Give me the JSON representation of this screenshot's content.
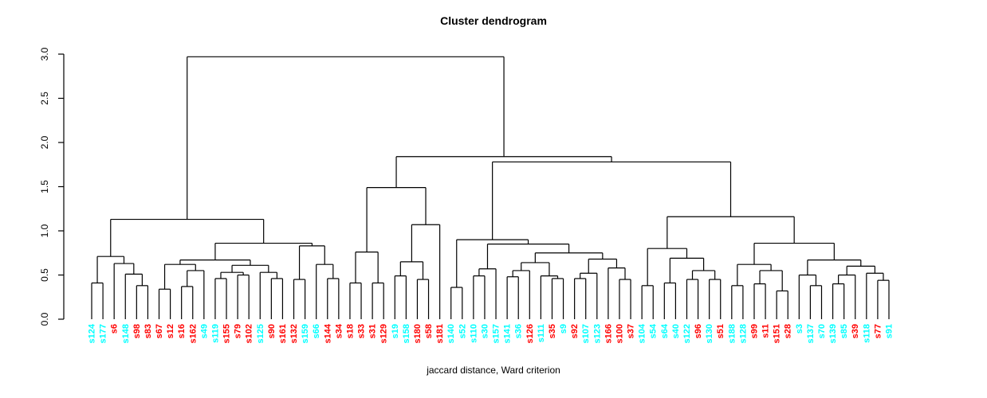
{
  "chart_data": {
    "type": "dendrogram",
    "title": "Cluster dendrogram",
    "xlabel": "jaccard distance, Ward criterion",
    "ylabel": "",
    "ylim": [
      0.0,
      3.0
    ],
    "yticks": [
      "0.0",
      "0.5",
      "1.0",
      "1.5",
      "2.0",
      "2.5",
      "3.0"
    ],
    "grid": false,
    "line_color": "#000000",
    "label_colors": {
      "red": "#ff0000",
      "cyan": "#00ffff"
    },
    "leaf_order": [
      {
        "label": "s124",
        "color": "cyan"
      },
      {
        "label": "s177",
        "color": "cyan"
      },
      {
        "label": "s6",
        "color": "red"
      },
      {
        "label": "s148",
        "color": "cyan"
      },
      {
        "label": "s98",
        "color": "red"
      },
      {
        "label": "s83",
        "color": "red"
      },
      {
        "label": "s67",
        "color": "red"
      },
      {
        "label": "s12",
        "color": "red"
      },
      {
        "label": "s16",
        "color": "red"
      },
      {
        "label": "s162",
        "color": "red"
      },
      {
        "label": "s49",
        "color": "cyan"
      },
      {
        "label": "s119",
        "color": "cyan"
      },
      {
        "label": "s155",
        "color": "red"
      },
      {
        "label": "s79",
        "color": "red"
      },
      {
        "label": "s102",
        "color": "red"
      },
      {
        "label": "s125",
        "color": "cyan"
      },
      {
        "label": "s90",
        "color": "red"
      },
      {
        "label": "s161",
        "color": "red"
      },
      {
        "label": "s132",
        "color": "red"
      },
      {
        "label": "s159",
        "color": "cyan"
      },
      {
        "label": "s66",
        "color": "cyan"
      },
      {
        "label": "s144",
        "color": "red"
      },
      {
        "label": "s34",
        "color": "red"
      },
      {
        "label": "s18",
        "color": "red"
      },
      {
        "label": "s33",
        "color": "red"
      },
      {
        "label": "s31",
        "color": "red"
      },
      {
        "label": "s129",
        "color": "red"
      },
      {
        "label": "s19",
        "color": "cyan"
      },
      {
        "label": "s158",
        "color": "cyan"
      },
      {
        "label": "s180",
        "color": "red"
      },
      {
        "label": "s58",
        "color": "red"
      },
      {
        "label": "s181",
        "color": "red"
      },
      {
        "label": "s140",
        "color": "cyan"
      },
      {
        "label": "s52",
        "color": "cyan"
      },
      {
        "label": "s110",
        "color": "cyan"
      },
      {
        "label": "s30",
        "color": "cyan"
      },
      {
        "label": "s157",
        "color": "cyan"
      },
      {
        "label": "s141",
        "color": "cyan"
      },
      {
        "label": "s36",
        "color": "cyan"
      },
      {
        "label": "s126",
        "color": "red"
      },
      {
        "label": "s111",
        "color": "cyan"
      },
      {
        "label": "s35",
        "color": "red"
      },
      {
        "label": "s9",
        "color": "cyan"
      },
      {
        "label": "s92",
        "color": "red"
      },
      {
        "label": "s107",
        "color": "cyan"
      },
      {
        "label": "s123",
        "color": "cyan"
      },
      {
        "label": "s166",
        "color": "red"
      },
      {
        "label": "s100",
        "color": "red"
      },
      {
        "label": "s37",
        "color": "red"
      },
      {
        "label": "s104",
        "color": "cyan"
      },
      {
        "label": "s54",
        "color": "cyan"
      },
      {
        "label": "s64",
        "color": "cyan"
      },
      {
        "label": "s40",
        "color": "cyan"
      },
      {
        "label": "s122",
        "color": "cyan"
      },
      {
        "label": "s96",
        "color": "red"
      },
      {
        "label": "s130",
        "color": "cyan"
      },
      {
        "label": "s51",
        "color": "red"
      },
      {
        "label": "s188",
        "color": "cyan"
      },
      {
        "label": "s128",
        "color": "cyan"
      },
      {
        "label": "s99",
        "color": "red"
      },
      {
        "label": "s11",
        "color": "red"
      },
      {
        "label": "s151",
        "color": "red"
      },
      {
        "label": "s28",
        "color": "red"
      },
      {
        "label": "s3",
        "color": "cyan"
      },
      {
        "label": "s137",
        "color": "cyan"
      },
      {
        "label": "s70",
        "color": "cyan"
      },
      {
        "label": "s139",
        "color": "cyan"
      },
      {
        "label": "s85",
        "color": "cyan"
      },
      {
        "label": "s39",
        "color": "red"
      },
      {
        "label": "s118",
        "color": "cyan"
      },
      {
        "label": "s77",
        "color": "red"
      },
      {
        "label": "s91",
        "color": "cyan"
      }
    ],
    "tree": {
      "h": 2.97,
      "c": [
        {
          "h": 1.13,
          "c": [
            {
              "h": 0.71,
              "c": [
                {
                  "h": 0.41,
                  "c": [
                    "s124",
                    "s177"
                  ]
                },
                {
                  "h": 0.63,
                  "c": [
                    "s6",
                    {
                      "h": 0.51,
                      "c": [
                        "s148",
                        {
                          "h": 0.38,
                          "c": [
                            "s98",
                            "s83"
                          ]
                        }
                      ]
                    }
                  ]
                }
              ]
            },
            {
              "h": 0.86,
              "c": [
                {
                  "h": 0.67,
                  "c": [
                    {
                      "h": 0.62,
                      "c": [
                        {
                          "h": 0.34,
                          "c": [
                            "s67",
                            "s12"
                          ]
                        },
                        {
                          "h": 0.55,
                          "c": [
                            {
                              "h": 0.37,
                              "c": [
                                "s16",
                                "s162"
                              ]
                            },
                            "s49"
                          ]
                        }
                      ]
                    },
                    {
                      "h": 0.61,
                      "c": [
                        {
                          "h": 0.53,
                          "c": [
                            {
                              "h": 0.46,
                              "c": [
                                "s119",
                                "s155"
                              ]
                            },
                            {
                              "h": 0.5,
                              "c": [
                                "s79",
                                "s102"
                              ]
                            }
                          ]
                        },
                        {
                          "h": 0.53,
                          "c": [
                            "s125",
                            {
                              "h": 0.46,
                              "c": [
                                "s90",
                                "s161"
                              ]
                            }
                          ]
                        }
                      ]
                    }
                  ]
                },
                {
                  "h": 0.83,
                  "c": [
                    {
                      "h": 0.45,
                      "c": [
                        "s132",
                        "s159"
                      ]
                    },
                    {
                      "h": 0.62,
                      "c": [
                        "s66",
                        {
                          "h": 0.46,
                          "c": [
                            "s144",
                            "s34"
                          ]
                        }
                      ]
                    }
                  ]
                }
              ]
            }
          ]
        },
        {
          "h": 1.84,
          "c": [
            {
              "h": 1.49,
              "c": [
                {
                  "h": 0.76,
                  "c": [
                    {
                      "h": 0.41,
                      "c": [
                        "s18",
                        "s33"
                      ]
                    },
                    {
                      "h": 0.41,
                      "c": [
                        "s31",
                        "s129"
                      ]
                    }
                  ]
                },
                {
                  "h": 1.07,
                  "c": [
                    {
                      "h": 0.65,
                      "c": [
                        {
                          "h": 0.49,
                          "c": [
                            "s19",
                            "s158"
                          ]
                        },
                        {
                          "h": 0.45,
                          "c": [
                            "s180",
                            "s58"
                          ]
                        }
                      ]
                    },
                    "s181"
                  ]
                }
              ]
            },
            {
              "h": 1.78,
              "c": [
                {
                  "h": 0.9,
                  "c": [
                    {
                      "h": 0.36,
                      "c": [
                        "s140",
                        "s52"
                      ]
                    },
                    {
                      "h": 0.85,
                      "c": [
                        {
                          "h": 0.57,
                          "c": [
                            {
                              "h": 0.49,
                              "c": [
                                "s110",
                                "s30"
                              ]
                            },
                            "s157"
                          ]
                        },
                        {
                          "h": 0.75,
                          "c": [
                            {
                              "h": 0.64,
                              "c": [
                                {
                                  "h": 0.55,
                                  "c": [
                                    {
                                      "h": 0.48,
                                      "c": [
                                        "s141",
                                        "s36"
                                      ]
                                    },
                                    "s126"
                                  ]
                                },
                                {
                                  "h": 0.49,
                                  "c": [
                                    "s111",
                                    {
                                      "h": 0.46,
                                      "c": [
                                        "s35",
                                        "s9"
                                      ]
                                    }
                                  ]
                                }
                              ]
                            },
                            {
                              "h": 0.68,
                              "c": [
                                {
                                  "h": 0.52,
                                  "c": [
                                    {
                                      "h": 0.46,
                                      "c": [
                                        "s92",
                                        "s107"
                                      ]
                                    },
                                    "s123"
                                  ]
                                },
                                {
                                  "h": 0.58,
                                  "c": [
                                    "s166",
                                    {
                                      "h": 0.45,
                                      "c": [
                                        "s100",
                                        "s37"
                                      ]
                                    }
                                  ]
                                }
                              ]
                            }
                          ]
                        }
                      ]
                    }
                  ]
                },
                {
                  "h": 1.16,
                  "c": [
                    {
                      "h": 0.8,
                      "c": [
                        {
                          "h": 0.38,
                          "c": [
                            "s104",
                            "s54"
                          ]
                        },
                        {
                          "h": 0.69,
                          "c": [
                            {
                              "h": 0.41,
                              "c": [
                                "s64",
                                "s40"
                              ]
                            },
                            {
                              "h": 0.55,
                              "c": [
                                {
                                  "h": 0.45,
                                  "c": [
                                    "s122",
                                    "s96"
                                  ]
                                },
                                {
                                  "h": 0.45,
                                  "c": [
                                    "s130",
                                    "s51"
                                  ]
                                }
                              ]
                            }
                          ]
                        }
                      ]
                    },
                    {
                      "h": 0.86,
                      "c": [
                        {
                          "h": 0.62,
                          "c": [
                            {
                              "h": 0.38,
                              "c": [
                                "s188",
                                "s128"
                              ]
                            },
                            {
                              "h": 0.55,
                              "c": [
                                {
                                  "h": 0.4,
                                  "c": [
                                    "s99",
                                    "s11"
                                  ]
                                },
                                {
                                  "h": 0.32,
                                  "c": [
                                    "s151",
                                    "s28"
                                  ]
                                }
                              ]
                            }
                          ]
                        },
                        {
                          "h": 0.67,
                          "c": [
                            {
                              "h": 0.5,
                              "c": [
                                "s3",
                                {
                                  "h": 0.38,
                                  "c": [
                                    "s137",
                                    "s70"
                                  ]
                                }
                              ]
                            },
                            {
                              "h": 0.6,
                              "c": [
                                {
                                  "h": 0.5,
                                  "c": [
                                    {
                                      "h": 0.4,
                                      "c": [
                                        "s139",
                                        "s85"
                                      ]
                                    },
                                    "s39"
                                  ]
                                },
                                {
                                  "h": 0.52,
                                  "c": [
                                    "s118",
                                    {
                                      "h": 0.44,
                                      "c": [
                                        "s77",
                                        "s91"
                                      ]
                                    }
                                  ]
                                }
                              ]
                            }
                          ]
                        }
                      ]
                    }
                  ]
                }
              ]
            }
          ]
        }
      ]
    }
  }
}
